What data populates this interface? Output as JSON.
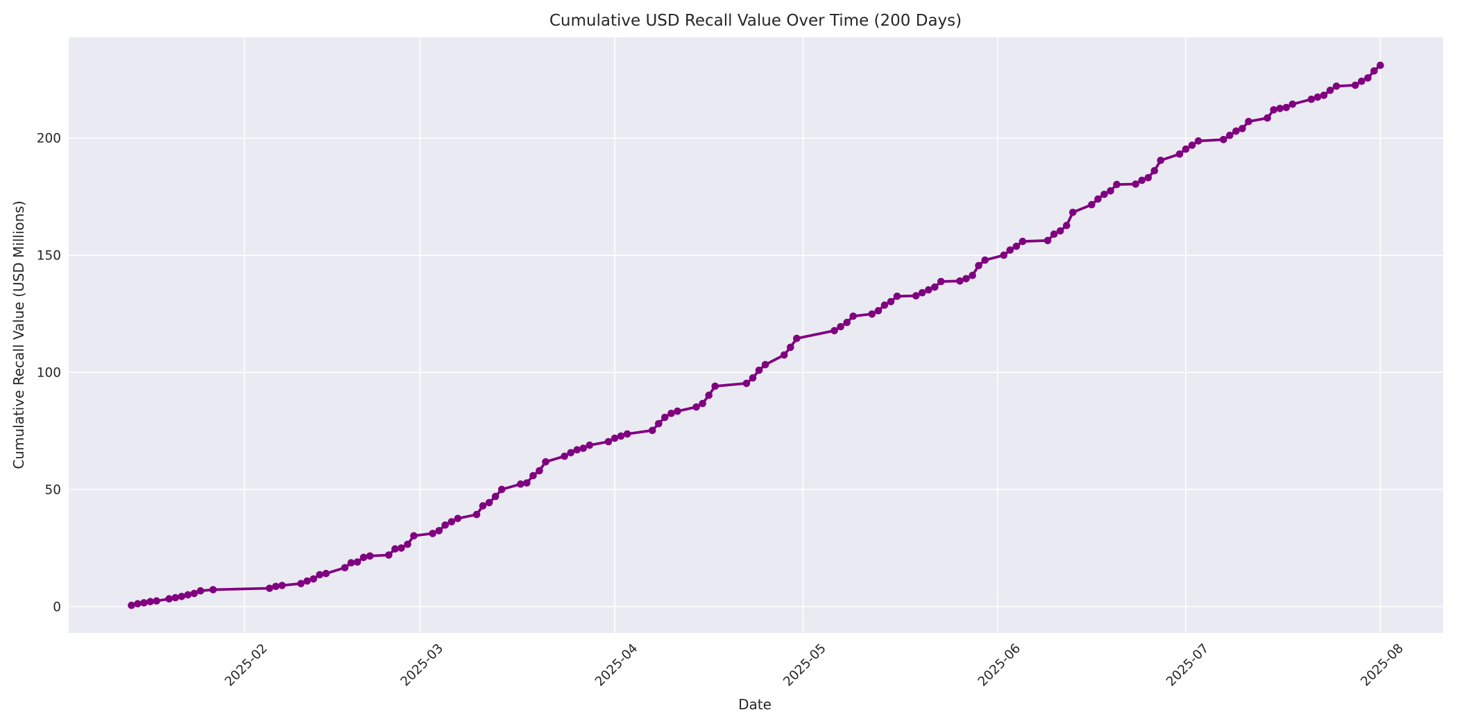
{
  "figure": {
    "title": "Cumulative USD Recall Value Over Time (200 Days)",
    "xlabel": "Date",
    "ylabel": "Cumulative Recall Value (USD Millions)"
  },
  "chart_data": {
    "type": "line",
    "title": "Cumulative USD Recall Value Over Time (200 Days)",
    "xlabel": "Date",
    "ylabel": "Cumulative Recall Value (USD Millions)",
    "grid": true,
    "legend": false,
    "style": {
      "line_color": "#800080",
      "marker": "circle",
      "marker_radius": 5.3,
      "line_width": 3.8,
      "plot_background": "#EAEAF2",
      "grid_color": "#FFFFFF",
      "figure_background": "#FFFFFF",
      "text_color": "#262626"
    },
    "xlim": [
      "2025-01-04",
      "2025-08-11"
    ],
    "ylim": [
      -11.3,
      243.0
    ],
    "xticks": [
      {
        "label": "2025-02",
        "date": "2025-02-01"
      },
      {
        "label": "2025-03",
        "date": "2025-03-01"
      },
      {
        "label": "2025-04",
        "date": "2025-04-01"
      },
      {
        "label": "2025-05",
        "date": "2025-05-01"
      },
      {
        "label": "2025-06",
        "date": "2025-06-01"
      },
      {
        "label": "2025-07",
        "date": "2025-07-01"
      },
      {
        "label": "2025-08",
        "date": "2025-08-01"
      }
    ],
    "yticks": [
      0,
      50,
      100,
      150,
      200
    ],
    "series": [
      {
        "name": "Cumulative USD recall value",
        "x": [
          "2025-01-14",
          "2025-01-15",
          "2025-01-16",
          "2025-01-17",
          "2025-01-18",
          "2025-01-20",
          "2025-01-21",
          "2025-01-22",
          "2025-01-23",
          "2025-01-24",
          "2025-01-25",
          "2025-01-27",
          "2025-02-05",
          "2025-02-06",
          "2025-02-07",
          "2025-02-10",
          "2025-02-11",
          "2025-02-12",
          "2025-02-13",
          "2025-02-14",
          "2025-02-17",
          "2025-02-18",
          "2025-02-19",
          "2025-02-20",
          "2025-02-21",
          "2025-02-24",
          "2025-02-25",
          "2025-02-26",
          "2025-02-27",
          "2025-02-28",
          "2025-03-03",
          "2025-03-04",
          "2025-03-05",
          "2025-03-06",
          "2025-03-07",
          "2025-03-10",
          "2025-03-11",
          "2025-03-12",
          "2025-03-13",
          "2025-03-14",
          "2025-03-17",
          "2025-03-18",
          "2025-03-19",
          "2025-03-20",
          "2025-03-21",
          "2025-03-24",
          "2025-03-25",
          "2025-03-26",
          "2025-03-27",
          "2025-03-28",
          "2025-03-31",
          "2025-04-01",
          "2025-04-02",
          "2025-04-03",
          "2025-04-07",
          "2025-04-08",
          "2025-04-09",
          "2025-04-10",
          "2025-04-11",
          "2025-04-14",
          "2025-04-15",
          "2025-04-16",
          "2025-04-17",
          "2025-04-22",
          "2025-04-23",
          "2025-04-24",
          "2025-04-25",
          "2025-04-28",
          "2025-04-29",
          "2025-04-30",
          "2025-05-06",
          "2025-05-07",
          "2025-05-08",
          "2025-05-09",
          "2025-05-12",
          "2025-05-13",
          "2025-05-14",
          "2025-05-15",
          "2025-05-16",
          "2025-05-19",
          "2025-05-20",
          "2025-05-21",
          "2025-05-22",
          "2025-05-23",
          "2025-05-26",
          "2025-05-27",
          "2025-05-28",
          "2025-05-29",
          "2025-05-30",
          "2025-06-02",
          "2025-06-03",
          "2025-06-04",
          "2025-06-05",
          "2025-06-09",
          "2025-06-10",
          "2025-06-11",
          "2025-06-12",
          "2025-06-13",
          "2025-06-16",
          "2025-06-17",
          "2025-06-18",
          "2025-06-19",
          "2025-06-20",
          "2025-06-23",
          "2025-06-24",
          "2025-06-25",
          "2025-06-26",
          "2025-06-27",
          "2025-06-30",
          "2025-07-01",
          "2025-07-02",
          "2025-07-03",
          "2025-07-07",
          "2025-07-08",
          "2025-07-09",
          "2025-07-10",
          "2025-07-11",
          "2025-07-14",
          "2025-07-15",
          "2025-07-16",
          "2025-07-17",
          "2025-07-18",
          "2025-07-21",
          "2025-07-22",
          "2025-07-23",
          "2025-07-24",
          "2025-07-25",
          "2025-07-28",
          "2025-07-29",
          "2025-07-30",
          "2025-07-31",
          "2025-08-01"
        ],
        "y": [
          0.5,
          1.2,
          1.6,
          2.1,
          2.4,
          3.3,
          3.8,
          4.3,
          5.0,
          5.6,
          6.7,
          7.2,
          7.8,
          8.6,
          9.0,
          9.8,
          10.9,
          11.8,
          13.6,
          14.1,
          16.6,
          18.7,
          19.0,
          21.0,
          21.6,
          22.0,
          24.6,
          25.0,
          26.6,
          30.2,
          31.2,
          32.4,
          34.8,
          36.2,
          37.6,
          39.3,
          43.0,
          44.4,
          47.0,
          50.0,
          52.3,
          52.8,
          55.9,
          58.0,
          61.8,
          64.2,
          65.7,
          66.9,
          67.6,
          68.9,
          70.4,
          71.9,
          72.8,
          73.7,
          75.2,
          78.1,
          80.8,
          82.5,
          83.4,
          85.2,
          86.7,
          90.2,
          94.1,
          95.3,
          97.6,
          100.9,
          103.3,
          107.4,
          110.7,
          114.5,
          117.8,
          119.5,
          121.3,
          124.0,
          124.9,
          126.3,
          128.7,
          130.2,
          132.5,
          132.7,
          134.0,
          135.2,
          136.4,
          138.8,
          139.0,
          140.0,
          141.4,
          145.6,
          147.9,
          150.0,
          152.2,
          153.8,
          155.9,
          156.3,
          159.0,
          160.4,
          162.7,
          168.3,
          171.6,
          174.0,
          176.0,
          177.5,
          180.2,
          180.4,
          182.0,
          183.1,
          186.1,
          190.5,
          193.2,
          195.3,
          197.0,
          198.8,
          199.4,
          201.2,
          203.0,
          204.1,
          207.1,
          208.6,
          212.1,
          212.7,
          213.1,
          214.5,
          216.6,
          217.5,
          218.3,
          220.4,
          222.2,
          222.6,
          224.3,
          225.7,
          228.7,
          231.1
        ]
      }
    ]
  }
}
